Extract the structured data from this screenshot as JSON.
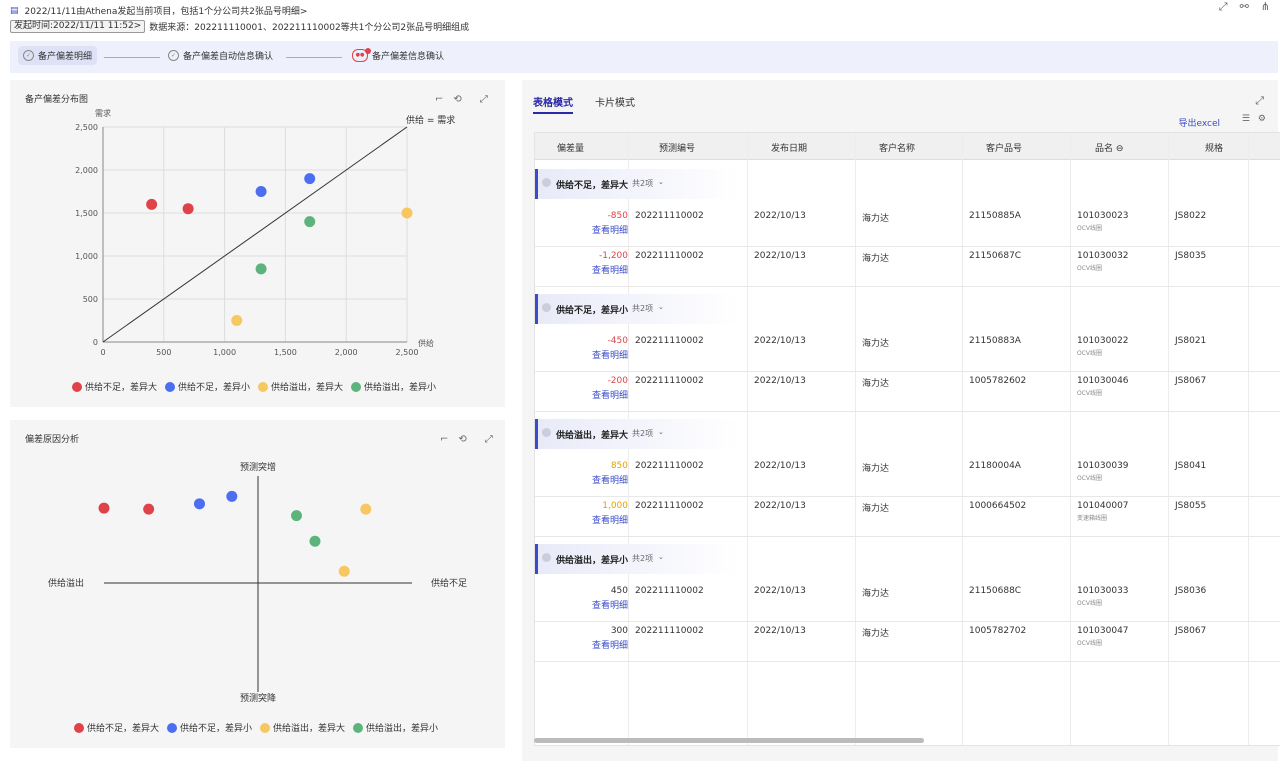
{
  "header": {
    "title": "2022/11/11由Athena发起当前项目，包括1个分公司共2张品号明细>",
    "time_chip": "发起时间:2022/11/11 11:52>",
    "source": "数据来源：202211110001、202211110002等共1个分公司2张品号明细组成"
  },
  "steps": [
    {
      "label": "备产偏差明细"
    },
    {
      "label": "备产偏差自动信息确认"
    },
    {
      "label": "备产偏差信息确认"
    }
  ],
  "scatter": {
    "title": "备产偏差分布图",
    "ylabel": "需求",
    "xlabel": "供给",
    "ref_label": "供给 = 需求"
  },
  "quadrant": {
    "title": "偏差原因分析",
    "top": "预测突增",
    "bottom": "预测突降",
    "left": "供给溢出",
    "right": "供给不足"
  },
  "legend": [
    {
      "label": "供给不足，差异大",
      "color": "#e0424a"
    },
    {
      "label": "供给不足，差异小",
      "color": "#4b6ff0"
    },
    {
      "label": "供给溢出，差异大",
      "color": "#f6c85f"
    },
    {
      "label": "供给溢出，差异小",
      "color": "#5cb47c"
    }
  ],
  "chart_data": [
    {
      "type": "scatter",
      "title": "备产偏差分布图",
      "xlabel": "供给",
      "ylabel": "需求",
      "xlim": [
        0,
        2500
      ],
      "ylim": [
        0,
        2500
      ],
      "xticks": [
        "0",
        "500",
        "1,000",
        "1,500",
        "2,000",
        "2,500"
      ],
      "yticks": [
        "0",
        "500",
        "1,000",
        "1,500",
        "2,000",
        "2,500"
      ],
      "reference_line": "供给 = 需求",
      "series": [
        {
          "name": "供给不足，差异大",
          "color": "#e0424a",
          "points": [
            [
              400,
              1600
            ],
            [
              700,
              1550
            ]
          ]
        },
        {
          "name": "供给不足，差异小",
          "color": "#4b6ff0",
          "points": [
            [
              1300,
              1750
            ],
            [
              1700,
              1900
            ]
          ]
        },
        {
          "name": "供给溢出，差异大",
          "color": "#f6c85f",
          "points": [
            [
              1100,
              250
            ],
            [
              2500,
              1500
            ]
          ]
        },
        {
          "name": "供给溢出，差异小",
          "color": "#5cb47c",
          "points": [
            [
              1300,
              850
            ],
            [
              1700,
              1400
            ]
          ]
        }
      ]
    },
    {
      "type": "scatter",
      "title": "偏差原因分析",
      "series": [
        {
          "name": "供给不足，差异大",
          "color": "#e0424a",
          "points": [
            [
              -1.0,
              0.7
            ],
            [
              -0.71,
              0.69
            ]
          ]
        },
        {
          "name": "供给不足，差异小",
          "color": "#4b6ff0",
          "points": [
            [
              -0.38,
              0.74
            ],
            [
              -0.17,
              0.81
            ]
          ]
        },
        {
          "name": "供给溢出，差异大",
          "color": "#f6c85f",
          "points": [
            [
              0.7,
              0.69
            ],
            [
              0.56,
              0.11
            ]
          ]
        },
        {
          "name": "供给溢出，差异小",
          "color": "#5cb47c",
          "points": [
            [
              0.25,
              0.63
            ],
            [
              0.37,
              0.39
            ]
          ]
        }
      ]
    }
  ],
  "right": {
    "tabs": [
      "表格模式",
      "卡片模式"
    ],
    "export": "导出excel",
    "columns": [
      "偏差量",
      "预测编号",
      "发布日期",
      "客户名称",
      "客户品号",
      "品名 ⊖",
      "规格"
    ],
    "link_text": "查看明细",
    "groups": [
      {
        "title": "供给不足，差异大",
        "count": "共2项",
        "rows": [
          {
            "dev": "-850",
            "dev_color": "#e0424a",
            "pred": "202211110002",
            "date": "2022/10/13",
            "cust": "海力达",
            "cpn": "21150885A",
            "pn": "101030023",
            "pn_sub": "OCV线圈",
            "spec": "JS8022"
          },
          {
            "dev": "-1,200",
            "dev_color": "#e0424a",
            "pred": "202211110002",
            "date": "2022/10/13",
            "cust": "海力达",
            "cpn": "21150687C",
            "pn": "101030032",
            "pn_sub": "OCV线圈",
            "spec": "JS8035"
          }
        ]
      },
      {
        "title": "供给不足，差异小",
        "count": "共2项",
        "rows": [
          {
            "dev": "-450",
            "dev_color": "#e0424a",
            "pred": "202211110002",
            "date": "2022/10/13",
            "cust": "海力达",
            "cpn": "21150883A",
            "pn": "101030022",
            "pn_sub": "OCV线圈",
            "spec": "JS8021"
          },
          {
            "dev": "-200",
            "dev_color": "#e0424a",
            "pred": "202211110002",
            "date": "2022/10/13",
            "cust": "海力达",
            "cpn": "1005782602",
            "pn": "101030046",
            "pn_sub": "OCV线圈",
            "spec": "JS8067"
          }
        ]
      },
      {
        "title": "供给溢出，差异大",
        "count": "共2项",
        "rows": [
          {
            "dev": "850",
            "dev_color": "#e6a100",
            "pred": "202211110002",
            "date": "2022/10/13",
            "cust": "海力达",
            "cpn": "21180004A",
            "pn": "101030039",
            "pn_sub": "OCV线圈",
            "spec": "JS8041"
          },
          {
            "dev": "1,000",
            "dev_color": "#e6a100",
            "pred": "202211110002",
            "date": "2022/10/13",
            "cust": "海力达",
            "cpn": "1000664502",
            "pn": "101040007",
            "pn_sub": "变速箱线圈",
            "spec": "JS8055"
          }
        ]
      },
      {
        "title": "供给溢出，差异小",
        "count": "共2项",
        "rows": [
          {
            "dev": "450",
            "dev_color": "#333333",
            "pred": "202211110002",
            "date": "2022/10/13",
            "cust": "海力达",
            "cpn": "21150688C",
            "pn": "101030033",
            "pn_sub": "OCV线圈",
            "spec": "JS8036"
          },
          {
            "dev": "300",
            "dev_color": "#333333",
            "pred": "202211110002",
            "date": "2022/10/13",
            "cust": "海力达",
            "cpn": "1005782702",
            "pn": "101030047",
            "pn_sub": "OCV线圈",
            "spec": "JS8067"
          }
        ]
      }
    ]
  }
}
